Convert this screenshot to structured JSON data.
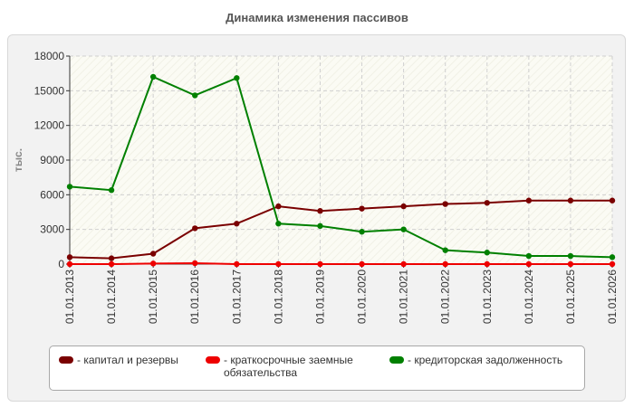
{
  "chart_data": {
    "type": "line",
    "title": "Динамика изменения пассивов",
    "ylabel": "тыс.",
    "xlabel": "",
    "ylim": [
      0,
      18000
    ],
    "yticks": [
      0,
      3000,
      6000,
      9000,
      12000,
      15000,
      18000
    ],
    "ytick_labels": [
      "0",
      "3000",
      "6000",
      "9000",
      "12000",
      "15000",
      "18000"
    ],
    "grid": true,
    "legend_position": "bottom",
    "categories": [
      "01.01.2013",
      "01.01.2014",
      "01.01.2015",
      "01.01.2016",
      "01.01.2017",
      "01.01.2018",
      "01.01.2019",
      "01.01.2020",
      "01.01.2021",
      "01.01.2022",
      "01.01.2023",
      "01.01.2024",
      "01.01.2025",
      "01.01.2026"
    ],
    "series": [
      {
        "name": "- капитал и резервы",
        "color": "#7a0000",
        "values": [
          600,
          500,
          900,
          3100,
          3500,
          5000,
          4600,
          4800,
          5000,
          5200,
          5300,
          5500,
          5500,
          5500
        ]
      },
      {
        "name": "- краткосрочные заемные обязательства",
        "color": "#ee0000",
        "values": [
          0,
          0,
          50,
          80,
          0,
          0,
          0,
          0,
          0,
          0,
          0,
          0,
          0,
          0
        ]
      },
      {
        "name": "- кредиторская задолженность",
        "color": "#008000",
        "values": [
          6700,
          6400,
          16200,
          14600,
          16100,
          3500,
          3300,
          2800,
          3000,
          1200,
          1000,
          700,
          700,
          600
        ]
      }
    ]
  }
}
